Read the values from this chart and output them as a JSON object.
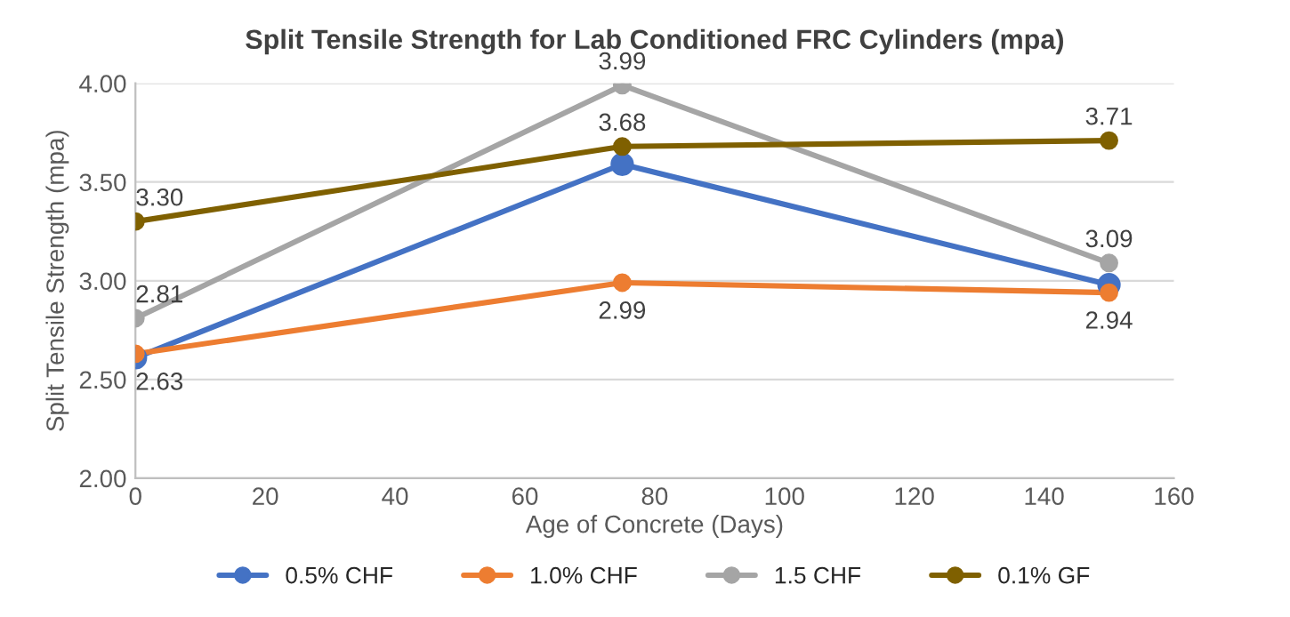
{
  "chart_data": {
    "type": "line",
    "title": "Split Tensile Strength for Lab Conditioned FRC Cylinders (mpa)",
    "xlabel": "Age of Concrete (Days)",
    "ylabel": "Split Tensile Strength (mpa)",
    "x": [
      0,
      75,
      150
    ],
    "series": [
      {
        "name": "0.5% CHF",
        "color": "#4472c4",
        "values": [
          2.61,
          3.59,
          2.98
        ],
        "value_labels": [
          null,
          null,
          null
        ]
      },
      {
        "name": "1.0% CHF",
        "color": "#ed7d31",
        "values": [
          2.63,
          2.99,
          2.94
        ],
        "value_labels": [
          "2.63",
          "2.99",
          "2.94"
        ]
      },
      {
        "name": "1.5 CHF",
        "color": "#a5a5a5",
        "values": [
          2.81,
          3.99,
          3.09
        ],
        "value_labels": [
          "2.81",
          "3.99",
          "3.09"
        ]
      },
      {
        "name": "0.1% GF",
        "color": "#7f6000",
        "values": [
          3.3,
          3.68,
          3.71
        ],
        "value_labels": [
          "3.30",
          "3.68",
          "3.71"
        ]
      }
    ],
    "xlim": [
      0,
      160
    ],
    "xticks": [
      0,
      20,
      40,
      60,
      80,
      100,
      120,
      140,
      160
    ],
    "ylim": [
      2.0,
      4.0
    ],
    "yticks": [
      {
        "value": 2.0,
        "label": "2.00"
      },
      {
        "value": 2.5,
        "label": "2.50"
      },
      {
        "value": 3.0,
        "label": "3.00"
      },
      {
        "value": 3.5,
        "label": "3.50"
      },
      {
        "value": 4.0,
        "label": "4.00"
      }
    ],
    "grid": "y",
    "legend": "bottom",
    "marker": "circle",
    "line_style": "solid"
  }
}
